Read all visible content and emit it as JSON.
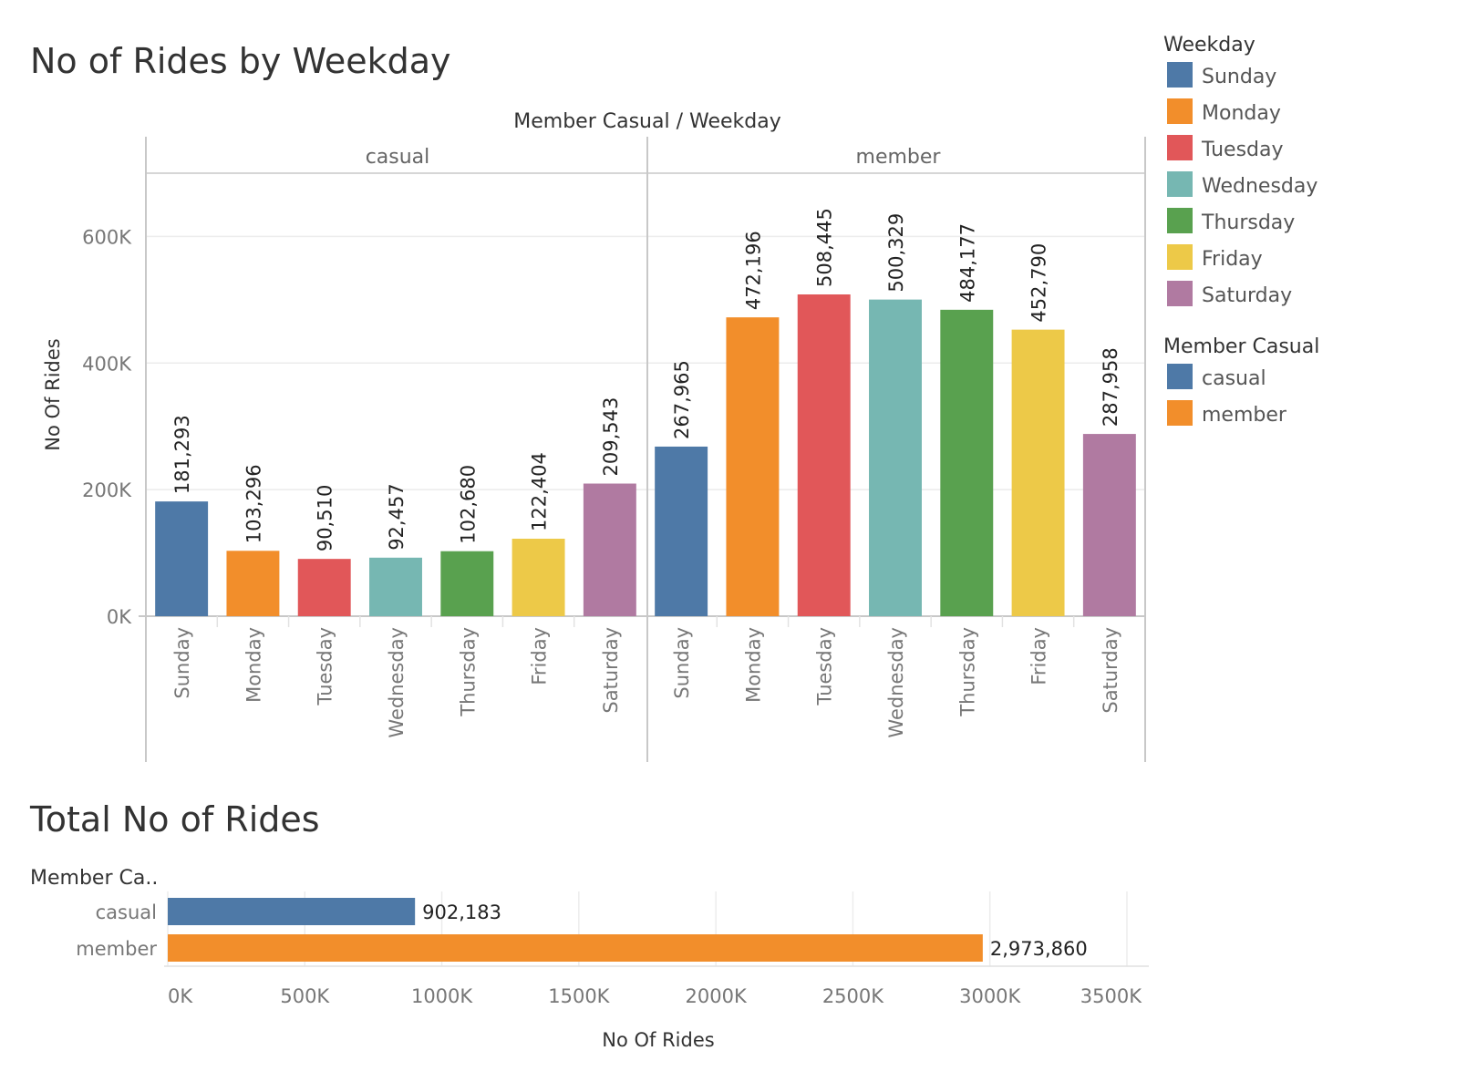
{
  "colors": {
    "Sunday": "#4e79a7",
    "Monday": "#f28e2b",
    "Tuesday": "#e15759",
    "Wednesday": "#76b7b2",
    "Thursday": "#59a14f",
    "Friday": "#edc948",
    "Saturday": "#b07aa1",
    "casual": "#4e79a7",
    "member": "#f28e2b"
  },
  "legend": {
    "weekday_title": "Weekday",
    "weekday_items": [
      "Sunday",
      "Monday",
      "Tuesday",
      "Wednesday",
      "Thursday",
      "Friday",
      "Saturday"
    ],
    "member_title": "Member Casual",
    "member_items": [
      "casual",
      "member"
    ]
  },
  "chart_data": [
    {
      "type": "bar",
      "title": "No of Rides by Weekday",
      "header": "Member Casual  /  Weekday",
      "ylabel": "No Of Rides",
      "ylim": [
        0,
        700000
      ],
      "yticks": [
        0,
        200000,
        400000,
        600000
      ],
      "ytick_labels": [
        "0K",
        "200K",
        "400K",
        "600K"
      ],
      "grid": true,
      "categories": [
        "Sunday",
        "Monday",
        "Tuesday",
        "Wednesday",
        "Thursday",
        "Friday",
        "Saturday"
      ],
      "series": [
        {
          "name": "casual",
          "values": [
            181293,
            103296,
            90510,
            92457,
            102680,
            122404,
            209543
          ],
          "labels": [
            "181,293",
            "103,296",
            "90,510",
            "92,457",
            "102,680",
            "122,404",
            "209,543"
          ]
        },
        {
          "name": "member",
          "values": [
            267965,
            472196,
            508445,
            500329,
            484177,
            452790,
            287958
          ],
          "labels": [
            "267,965",
            "472,196",
            "508,445",
            "500,329",
            "484,177",
            "452,790",
            "287,958"
          ]
        }
      ]
    },
    {
      "type": "bar",
      "orientation": "horizontal",
      "title": "Total No of Rides",
      "row_header": "Member Ca..",
      "xlabel": "No Of Rides",
      "xlim": [
        0,
        3500000
      ],
      "xticks": [
        0,
        500000,
        1000000,
        1500000,
        2000000,
        2500000,
        3000000,
        3500000
      ],
      "xtick_labels": [
        "0K",
        "500K",
        "1000K",
        "1500K",
        "2000K",
        "2500K",
        "3000K",
        "3500K"
      ],
      "categories": [
        "casual",
        "member"
      ],
      "values": [
        902183,
        2973860
      ],
      "labels": [
        "902,183",
        "2,973,860"
      ]
    }
  ]
}
